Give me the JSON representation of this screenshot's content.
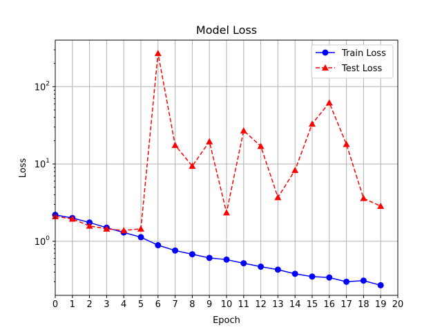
{
  "chart_data": {
    "type": "line",
    "title": "Model Loss",
    "xlabel": "Epoch",
    "ylabel": "Loss",
    "yscale": "log",
    "xlim": [
      0,
      20
    ],
    "ylim": [
      0.2,
      400
    ],
    "grid": true,
    "legend_position": "top-right",
    "x_ticks": [
      0,
      1,
      2,
      3,
      4,
      5,
      6,
      7,
      8,
      9,
      10,
      11,
      12,
      13,
      14,
      15,
      16,
      17,
      18,
      19,
      20
    ],
    "y_ticks": [
      {
        "value": 1,
        "base": "10",
        "exp": "0"
      },
      {
        "value": 10,
        "base": "10",
        "exp": "1"
      },
      {
        "value": 100,
        "base": "10",
        "exp": "2"
      }
    ],
    "x": [
      0,
      1,
      2,
      3,
      4,
      5,
      6,
      7,
      8,
      9,
      10,
      11,
      12,
      13,
      14,
      15,
      16,
      17,
      18,
      19
    ],
    "series": [
      {
        "name": "Train Loss",
        "color": "#0000ff",
        "linestyle": "solid",
        "marker": "circle",
        "values": [
          2.2,
          2.0,
          1.75,
          1.5,
          1.3,
          1.13,
          0.89,
          0.76,
          0.68,
          0.61,
          0.58,
          0.52,
          0.47,
          0.43,
          0.38,
          0.35,
          0.34,
          0.3,
          0.31,
          0.27
        ]
      },
      {
        "name": "Test Loss",
        "color": "#ff0000",
        "linestyle": "dashed",
        "marker": "triangle",
        "values": [
          2.1,
          1.95,
          1.58,
          1.45,
          1.38,
          1.45,
          270,
          17.5,
          9.4,
          19.5,
          2.35,
          27,
          17,
          3.7,
          8.3,
          33,
          62,
          18,
          3.6,
          2.85
        ]
      }
    ]
  }
}
